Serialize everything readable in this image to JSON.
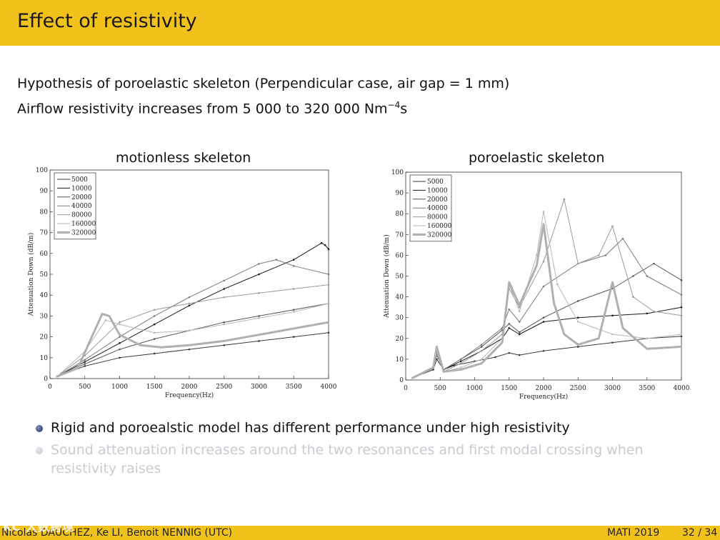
{
  "slide": {
    "title": "Effect of resistivity",
    "intro_line1": "Hypothesis of poroelastic skeleton (Perpendicular case, air gap = 1 mm)",
    "intro_line2_prefix": "Airflow resistivity increases from 5 000 to 320 000 Nm",
    "intro_line2_exp": "−4",
    "intro_line2_suffix": "s"
  },
  "bullets": [
    "Rigid and poroealstic model has different performance under high resistivity",
    "Sound attenuation increases around the two resonances and first modal crossing when resistivity raises"
  ],
  "footer": {
    "authors": "Nicolas DAUCHEZ, Ke LI, Benoit NENNIG (UTC)",
    "event": "MATI 2019",
    "page": "32 / 34"
  },
  "watermark": "KC 大数跨境",
  "colors": {
    "bar": "#f1c21b",
    "series": [
      "#3a3a3a",
      "#1a1a1a",
      "#555555",
      "#7a7a7a",
      "#9a9a9a",
      "#b8b8b8",
      "#b0b0b0"
    ]
  },
  "chart_data": [
    {
      "type": "line",
      "title": "motionless skeleton",
      "xlabel": "Frequency(Hz)",
      "ylabel": "Attenuation Down (dB/m)",
      "xlim": [
        0,
        4000
      ],
      "ylim": [
        0,
        100
      ],
      "xticks": [
        0,
        500,
        1000,
        1500,
        2000,
        2500,
        3000,
        3500,
        4000
      ],
      "yticks": [
        0,
        10,
        20,
        30,
        40,
        50,
        60,
        70,
        80,
        90,
        100
      ],
      "legend_position": "top-left",
      "series": [
        {
          "name": "5000",
          "x": [
            100,
            500,
            1000,
            1500,
            2000,
            2500,
            3000,
            3500,
            4000
          ],
          "y": [
            1,
            6,
            10,
            12,
            14,
            16,
            18,
            20,
            22
          ]
        },
        {
          "name": "10000",
          "x": [
            100,
            500,
            1000,
            1500,
            2000,
            2500,
            3000,
            3500,
            3900,
            3950,
            4000
          ],
          "y": [
            1,
            8,
            17,
            26,
            35,
            43,
            50,
            57,
            65,
            64,
            62
          ]
        },
        {
          "name": "20000",
          "x": [
            100,
            500,
            1000,
            1500,
            2000,
            2500,
            3000,
            3500,
            4000
          ],
          "y": [
            1,
            7,
            14,
            19,
            23,
            27,
            30,
            33,
            36
          ]
        },
        {
          "name": "40000",
          "x": [
            100,
            500,
            1000,
            1500,
            2000,
            2500,
            3000,
            3250,
            3500,
            4000
          ],
          "y": [
            1,
            9,
            20,
            30,
            39,
            47,
            55,
            57,
            54,
            50
          ]
        },
        {
          "name": "80000",
          "x": [
            100,
            500,
            1000,
            1500,
            2000,
            2500,
            3000,
            3500,
            4000
          ],
          "y": [
            1,
            11,
            27,
            33,
            36,
            39,
            41,
            43,
            45
          ]
        },
        {
          "name": "160000",
          "x": [
            100,
            500,
            800,
            1000,
            1500,
            2000,
            2500,
            3000,
            3500,
            4000
          ],
          "y": [
            1,
            13,
            28,
            26,
            22,
            23,
            26,
            29,
            32,
            36
          ]
        },
        {
          "name": "320000",
          "x": [
            100,
            400,
            600,
            750,
            850,
            1000,
            1300,
            1600,
            2000,
            2500,
            3000,
            3500,
            4000
          ],
          "y": [
            1,
            5,
            20,
            31,
            30,
            21,
            16,
            15,
            16,
            18,
            21,
            24,
            27
          ]
        }
      ]
    },
    {
      "type": "line",
      "title": "poroelastic skeleton",
      "xlabel": "Frequency(Hz)",
      "ylabel": "Attenuation Down (dB/m)",
      "xlim": [
        0,
        4000
      ],
      "ylim": [
        0,
        100
      ],
      "xticks": [
        0,
        500,
        1000,
        1500,
        2000,
        2500,
        3000,
        3500,
        4000
      ],
      "yticks": [
        0,
        10,
        20,
        30,
        40,
        50,
        60,
        70,
        80,
        90,
        100
      ],
      "legend_position": "top-left",
      "series": [
        {
          "name": "5000",
          "x": [
            100,
            400,
            450,
            550,
            700,
            1000,
            1300,
            1500,
            1650,
            2000,
            2500,
            3000,
            3500,
            4000
          ],
          "y": [
            1,
            5,
            10,
            5,
            7,
            9,
            11,
            13,
            12,
            14,
            16,
            18,
            20,
            21
          ]
        },
        {
          "name": "10000",
          "x": [
            100,
            400,
            450,
            550,
            800,
            1100,
            1400,
            1500,
            1650,
            2000,
            2500,
            3000,
            3500,
            4000
          ],
          "y": [
            1,
            6,
            12,
            5,
            9,
            14,
            20,
            25,
            22,
            28,
            30,
            31,
            32,
            35
          ]
        },
        {
          "name": "20000",
          "x": [
            100,
            400,
            450,
            550,
            800,
            1100,
            1400,
            1500,
            1650,
            2000,
            2500,
            3000,
            3300,
            3600,
            4000
          ],
          "y": [
            1,
            6,
            12,
            5,
            10,
            16,
            24,
            27,
            23,
            30,
            38,
            44,
            50,
            56,
            48
          ]
        },
        {
          "name": "40000",
          "x": [
            100,
            400,
            450,
            550,
            800,
            1100,
            1400,
            1500,
            1650,
            2000,
            2500,
            2900,
            3150,
            3500,
            4000
          ],
          "y": [
            1,
            6,
            12,
            5,
            10,
            17,
            25,
            34,
            28,
            45,
            56,
            60,
            68,
            50,
            41
          ]
        },
        {
          "name": "80000",
          "x": [
            100,
            400,
            450,
            550,
            800,
            1100,
            1400,
            1500,
            1650,
            2000,
            2300,
            2500,
            2800,
            3000,
            3300,
            3600,
            4000
          ],
          "y": [
            1,
            6,
            13,
            4,
            8,
            14,
            22,
            44,
            35,
            57,
            87,
            56,
            60,
            74,
            40,
            33,
            31
          ]
        },
        {
          "name": "160000",
          "x": [
            100,
            400,
            450,
            550,
            800,
            1100,
            1400,
            1500,
            1650,
            1900,
            2000,
            2200,
            2500,
            3000,
            3500,
            4000
          ],
          "y": [
            1,
            6,
            15,
            4,
            6,
            10,
            20,
            46,
            33,
            60,
            81,
            46,
            28,
            22,
            20,
            22
          ]
        },
        {
          "name": "320000",
          "x": [
            100,
            400,
            450,
            550,
            800,
            1100,
            1400,
            1500,
            1650,
            1900,
            2000,
            2150,
            2300,
            2500,
            2800,
            3000,
            3150,
            3500,
            4000
          ],
          "y": [
            1,
            6,
            16,
            4,
            5,
            8,
            18,
            47,
            36,
            55,
            75,
            37,
            22,
            17,
            20,
            47,
            25,
            15,
            16
          ]
        }
      ]
    }
  ]
}
